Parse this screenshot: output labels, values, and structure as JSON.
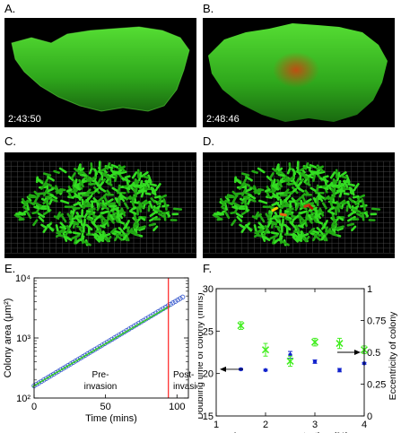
{
  "panels": {
    "a": {
      "label": "A.",
      "timestamp": "2:43:50"
    },
    "b": {
      "label": "B.",
      "timestamp": "2:48:46"
    },
    "c": {
      "label": "C."
    },
    "d": {
      "label": "D."
    },
    "e": {
      "label": "E."
    },
    "f": {
      "label": "F."
    }
  },
  "colors": {
    "colony_green": "#33cc22",
    "invader_red": "#cc3311",
    "invader_yellow": "#ffcc00",
    "marker_green": "#44ee22",
    "marker_blue": "#1122cc",
    "vline_red": "#ff2222"
  },
  "chart_data": [
    {
      "type": "scatter",
      "panel": "E.",
      "ylabel": "Colony area (μm²)",
      "xlabel": "Time (mins)",
      "yscale": "log",
      "xlim": [
        0,
        108
      ],
      "ylim": [
        100,
        10000
      ],
      "xticks": [
        "0",
        "50",
        "100"
      ],
      "xtick_values": [
        0,
        50,
        100
      ],
      "yticks": [
        "10²",
        "10³",
        "10⁴"
      ],
      "ytick_values": [
        100,
        1000,
        10000
      ],
      "invasion_time": 94,
      "annotations": {
        "pre": [
          "Pre-",
          "invasion"
        ],
        "post": [
          "Post-",
          "invasion"
        ]
      },
      "series": [
        {
          "marker": "open-circle",
          "color": "#3355cc",
          "x_start": 0,
          "x_end": 104,
          "y_start": 160,
          "y_end": 4800
        },
        {
          "marker": "green-dash",
          "color": "#33cc22",
          "x_start": 0,
          "x_end": 94,
          "y_start": 160,
          "y_end": 3300
        }
      ]
    },
    {
      "type": "scatter",
      "panel": "F.",
      "xlabel": "Agarose concentration (%)",
      "ylabel": "Doubling time of colony (mins)",
      "ylabel_right": "Eccentricity of colony",
      "xlim": [
        1,
        4
      ],
      "ylim": [
        15,
        30
      ],
      "ylim_right": [
        0,
        1
      ],
      "xticks": [
        "1",
        "2",
        "3",
        "4"
      ],
      "yticks": [
        "15",
        "20",
        "25",
        "30"
      ],
      "yticks_right": [
        "0",
        "0.25",
        "0.5",
        "0.75",
        "1"
      ],
      "series": [
        {
          "name": "",
          "axis": "left",
          "marker": "dot",
          "color": "#1122cc",
          "x": [
            1.5,
            2.0,
            2.5,
            3.0,
            3.5,
            4.0
          ],
          "y": [
            20.5,
            20.4,
            22.2,
            21.4,
            20.4,
            21.2
          ],
          "err": [
            0.1,
            0.1,
            0.4,
            0.2,
            0.2,
            0.1
          ]
        },
        {
          "name": "",
          "axis": "right",
          "marker": "x",
          "color": "#44ee22",
          "x": [
            1.5,
            2.0,
            2.5,
            3.0,
            3.5,
            4.0
          ],
          "y": [
            0.71,
            0.52,
            0.43,
            0.58,
            0.57,
            0.52
          ],
          "err": [
            0.03,
            0.05,
            0.04,
            0.03,
            0.04,
            0.03
          ]
        }
      ]
    }
  ]
}
